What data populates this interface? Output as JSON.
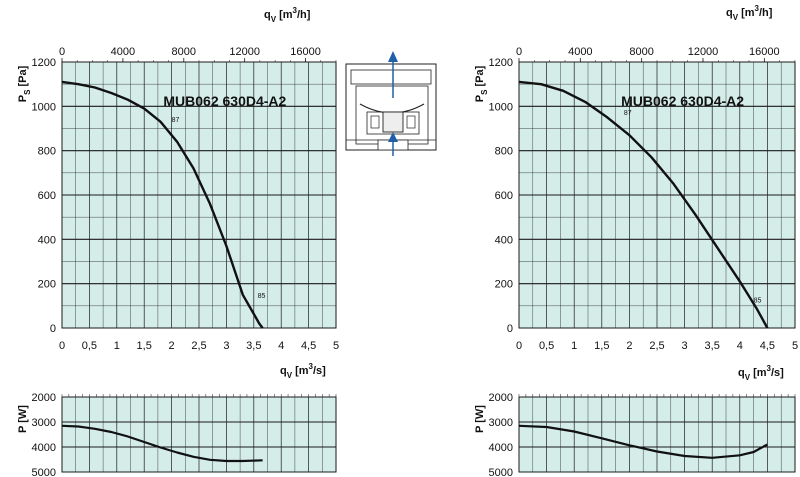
{
  "chart_data": [
    {
      "type": "line",
      "title": "MUB062 630D4-A2",
      "xlabel_bottom": "q_V [m3/s]",
      "xlabel_top": "q_V [m3/h]",
      "ylabel": "P_S [Pa]",
      "xlim": [
        0,
        5
      ],
      "ylim": [
        0,
        1200
      ],
      "top_xlim": [
        0,
        18000
      ],
      "x_ticks": [
        "0",
        "0,5",
        "1",
        "1,5",
        "2",
        "2,5",
        "3",
        "3,5",
        "4",
        "4,5",
        "5"
      ],
      "y_ticks": [
        "0",
        "200",
        "400",
        "600",
        "800",
        "1000",
        "1200"
      ],
      "top_ticks": [
        "0",
        "4000",
        "8000",
        "12000",
        "16000"
      ],
      "grid": true,
      "series": [
        {
          "x": [
            0,
            0.3,
            0.6,
            0.9,
            1.2,
            1.5,
            1.8,
            2.1,
            2.4,
            2.7,
            3.0,
            3.3,
            3.6,
            3.66
          ],
          "y": [
            1110,
            1100,
            1085,
            1060,
            1030,
            990,
            930,
            840,
            720,
            560,
            370,
            150,
            20,
            0
          ]
        }
      ],
      "annotations": [
        {
          "text": "87",
          "x": 2.0,
          "y": 930
        },
        {
          "text": "85",
          "x": 3.57,
          "y": 135
        }
      ]
    },
    {
      "type": "line",
      "xlabel": "",
      "ylabel": "P [W]",
      "xlim": [
        0,
        5
      ],
      "ylim": [
        2000,
        5000
      ],
      "y_ticks": [
        "2000",
        "3000",
        "4000",
        "5000"
      ],
      "grid": true,
      "series": [
        {
          "x": [
            0,
            0.3,
            0.6,
            0.9,
            1.2,
            1.5,
            1.8,
            2.1,
            2.4,
            2.7,
            3.0,
            3.3,
            3.66
          ],
          "y": [
            3150,
            3180,
            3270,
            3400,
            3580,
            3800,
            4020,
            4220,
            4390,
            4510,
            4560,
            4560,
            4530
          ]
        }
      ]
    },
    {
      "type": "line",
      "title": "MUB062 630D4-A2",
      "xlabel_bottom": "q_V [m3/s]",
      "xlabel_top": "q_V [m3/h]",
      "ylabel": "P_S [Pa]",
      "xlim": [
        0,
        5
      ],
      "ylim": [
        0,
        1200
      ],
      "top_xlim": [
        0,
        18000
      ],
      "x_ticks": [
        "0",
        "0,5",
        "1",
        "1,5",
        "2",
        "2,5",
        "3",
        "3,5",
        "4",
        "4,5",
        "5"
      ],
      "y_ticks": [
        "0",
        "200",
        "400",
        "600",
        "800",
        "1000",
        "1200"
      ],
      "top_ticks": [
        "0",
        "4000",
        "8000",
        "12000",
        "16000"
      ],
      "grid": true,
      "series": [
        {
          "x": [
            0,
            0.4,
            0.8,
            1.2,
            1.6,
            2.0,
            2.4,
            2.8,
            3.2,
            3.6,
            4.0,
            4.3,
            4.5
          ],
          "y": [
            1110,
            1100,
            1070,
            1020,
            950,
            870,
            770,
            650,
            510,
            360,
            210,
            90,
            0
          ]
        }
      ],
      "annotations": [
        {
          "text": "87",
          "x": 1.9,
          "y": 960
        },
        {
          "text": "85",
          "x": 4.25,
          "y": 115
        }
      ]
    },
    {
      "type": "line",
      "xlabel": "",
      "ylabel": "P [W]",
      "xlim": [
        0,
        5
      ],
      "ylim": [
        2000,
        5000
      ],
      "y_ticks": [
        "2000",
        "3000",
        "4000",
        "5000"
      ],
      "grid": true,
      "series": [
        {
          "x": [
            0,
            0.5,
            1.0,
            1.5,
            2.0,
            2.5,
            3.0,
            3.5,
            4.0,
            4.25,
            4.5
          ],
          "y": [
            3150,
            3200,
            3380,
            3650,
            3930,
            4180,
            4360,
            4430,
            4330,
            4200,
            3900
          ]
        }
      ]
    }
  ],
  "tags": {
    "pt_87": "87",
    "pt_85": "85",
    "x_unit": "m",
    "sup3": "3",
    "per_h": "/h",
    "per_s": "/s"
  },
  "colors": {
    "plot_bg": "#d5ede9",
    "grid": "#1a1a1a",
    "curve": "#111111",
    "arrow": "#1f5fa8"
  },
  "icons": [
    "fan-unit-diagram-icon",
    "airflow-up-arrow-icon"
  ]
}
